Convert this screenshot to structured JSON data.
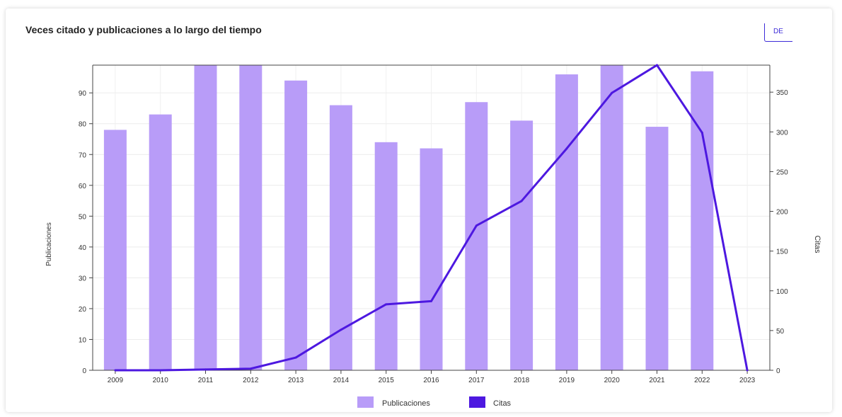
{
  "header": {
    "title": "Veces citado y publicaciones a lo largo del tiempo",
    "button_label": "DE"
  },
  "chart_data": {
    "type": "bar",
    "categories": [
      "2009",
      "2010",
      "2011",
      "2012",
      "2013",
      "2014",
      "2015",
      "2016",
      "2017",
      "2018",
      "2019",
      "2020",
      "2021",
      "2022",
      "2023"
    ],
    "series": [
      {
        "name": "Publicaciones",
        "kind": "bar",
        "axis": "left",
        "color": "#b89cf8",
        "values": [
          78,
          83,
          99,
          99,
          94,
          86,
          74,
          72,
          87,
          81,
          96,
          99,
          79,
          97,
          0
        ]
      },
      {
        "name": "Citas",
        "kind": "line",
        "axis": "right",
        "color": "#4d18e0",
        "values": [
          0,
          0,
          1,
          2,
          16,
          51,
          83,
          87,
          182,
          213,
          279,
          349,
          384,
          299,
          0
        ]
      }
    ],
    "ylabel": "Publicaciones",
    "y2label": "Citas",
    "ylim": [
      0,
      99
    ],
    "y2lim": [
      0,
      384
    ],
    "yticks": [
      0,
      10,
      20,
      30,
      40,
      50,
      60,
      70,
      80,
      90
    ],
    "y2ticks": [
      0,
      50,
      100,
      150,
      200,
      250,
      300,
      350
    ],
    "grid": true,
    "legend_position": "bottom-center"
  }
}
